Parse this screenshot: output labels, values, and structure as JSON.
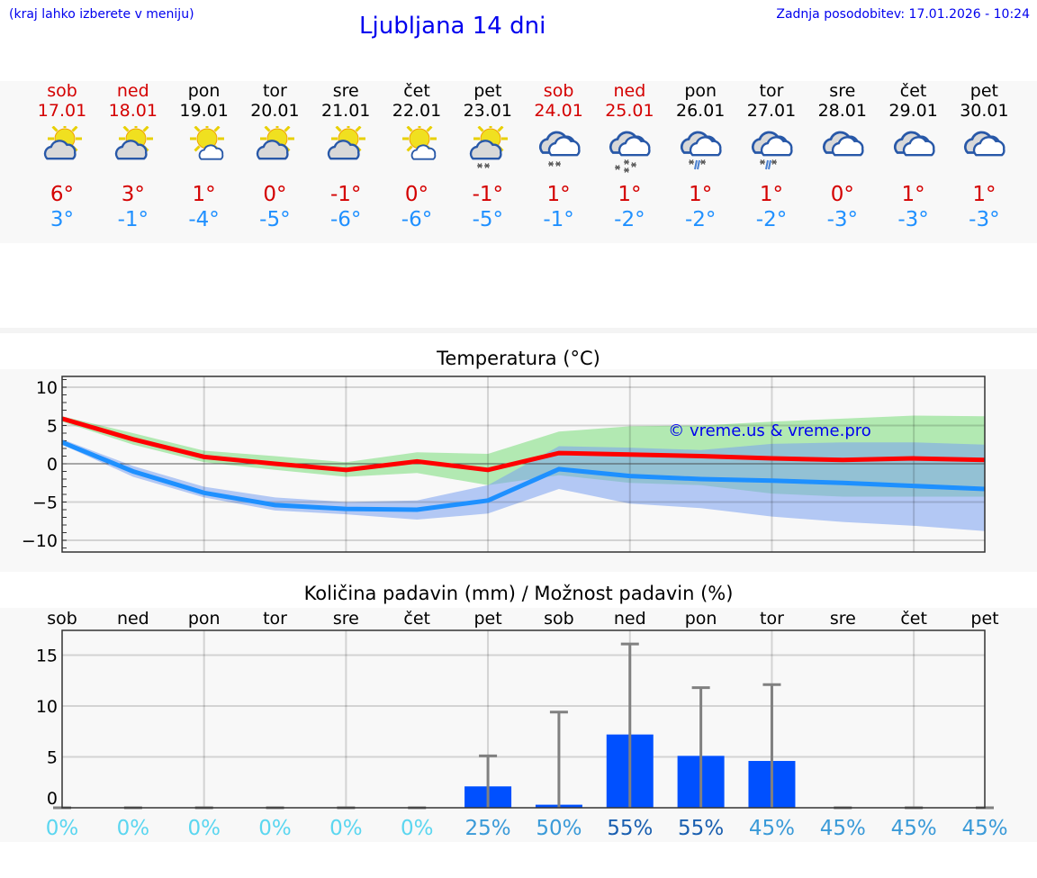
{
  "header": {
    "hint": "(kraj lahko izberete v meniju)",
    "title": "Ljubljana 14 dni",
    "updated": "Zadnja posodobitev: 17.01.2026 - 10:24"
  },
  "days": [
    {
      "weekday": "sob",
      "date": "17.01",
      "weekend": true,
      "icon": "sun-cloud-icon",
      "max": "6°",
      "min": "3°"
    },
    {
      "weekday": "ned",
      "date": "18.01",
      "weekend": true,
      "icon": "sun-cloud-icon",
      "max": "3°",
      "min": "-1°"
    },
    {
      "weekday": "pon",
      "date": "19.01",
      "weekend": false,
      "icon": "sun-small-cloud-icon",
      "max": "1°",
      "min": "-4°"
    },
    {
      "weekday": "tor",
      "date": "20.01",
      "weekend": false,
      "icon": "sun-cloud-icon",
      "max": "0°",
      "min": "-5°"
    },
    {
      "weekday": "sre",
      "date": "21.01",
      "weekend": false,
      "icon": "sun-cloud-icon",
      "max": "-1°",
      "min": "-6°"
    },
    {
      "weekday": "čet",
      "date": "22.01",
      "weekend": false,
      "icon": "sun-small-cloud-icon",
      "max": "0°",
      "min": "-6°"
    },
    {
      "weekday": "pet",
      "date": "23.01",
      "weekend": false,
      "icon": "sun-cloud-snow-icon",
      "max": "-1°",
      "min": "-5°"
    },
    {
      "weekday": "sob",
      "date": "24.01",
      "weekend": true,
      "icon": "cloud-snow-icon",
      "max": "1°",
      "min": "-1°"
    },
    {
      "weekday": "ned",
      "date": "25.01",
      "weekend": true,
      "icon": "cloud-heavy-snow-icon",
      "max": "1°",
      "min": "-2°"
    },
    {
      "weekday": "pon",
      "date": "26.01",
      "weekend": false,
      "icon": "cloud-sleet-icon",
      "max": "1°",
      "min": "-2°"
    },
    {
      "weekday": "tor",
      "date": "27.01",
      "weekend": false,
      "icon": "cloud-sleet-icon",
      "max": "1°",
      "min": "-2°"
    },
    {
      "weekday": "sre",
      "date": "28.01",
      "weekend": false,
      "icon": "cloud-icon",
      "max": "0°",
      "min": "-3°"
    },
    {
      "weekday": "čet",
      "date": "29.01",
      "weekend": false,
      "icon": "cloud-icon",
      "max": "1°",
      "min": "-3°"
    },
    {
      "weekday": "pet",
      "date": "30.01",
      "weekend": false,
      "icon": "cloud-icon",
      "max": "1°",
      "min": "-3°"
    }
  ],
  "chart_data": [
    {
      "type": "line",
      "title": "Temperatura (°C)",
      "ylim": [
        -11.5,
        11.5
      ],
      "yticks": [
        "10",
        "5",
        "0",
        "−5",
        "−10"
      ],
      "ytick_values": [
        10,
        5,
        0,
        -5,
        -10
      ],
      "grid": true,
      "watermark": "© vreme.us & vreme.pro",
      "x": [
        "17.01",
        "18.01",
        "19.01",
        "20.01",
        "21.01",
        "22.01",
        "23.01",
        "24.01",
        "25.01",
        "26.01",
        "27.01",
        "28.01",
        "29.01",
        "30.01"
      ],
      "series": [
        {
          "role": "max",
          "color": "#ff0000",
          "values": [
            5.9,
            3.2,
            0.9,
            0,
            -0.8,
            0.3,
            -0.8,
            1.4,
            1.2,
            1.0,
            0.7,
            0.5,
            0.7,
            0.5
          ],
          "band_high": [
            6.2,
            4,
            1.7,
            1,
            0.2,
            1.5,
            1.3,
            4.2,
            4.9,
            5.0,
            5.5,
            5.9,
            6.3,
            6.2
          ],
          "band_low": [
            5.5,
            2.5,
            0.2,
            -0.8,
            -1.7,
            -1.2,
            -2.8,
            -1.5,
            -2.5,
            -2.8,
            -3.9,
            -4.3,
            -4.3,
            -4.3
          ],
          "band_color": "#aee8ae"
        },
        {
          "role": "min",
          "color": "#1e90ff",
          "values": [
            2.8,
            -1,
            -3.8,
            -5.4,
            -5.9,
            -6.0,
            -4.8,
            -0.7,
            -1.6,
            -2.0,
            -2.2,
            -2.5,
            -2.9,
            -3.3
          ],
          "band_high": [
            3.2,
            -0.3,
            -3,
            -4.4,
            -5,
            -4.8,
            -2.8,
            2.3,
            2.1,
            1.8,
            2.6,
            2.8,
            2.8,
            2.5
          ],
          "band_low": [
            2.5,
            -1.7,
            -4.4,
            -6.1,
            -6.6,
            -7.3,
            -6.5,
            -3.3,
            -5.2,
            -5.8,
            -6.9,
            -7.6,
            -8.1,
            -8.8
          ],
          "band_color": "#7aa0f0"
        }
      ]
    },
    {
      "type": "bar",
      "title": "Količina padavin (mm) / Možnost padavin (%)",
      "ylim": [
        0,
        17.5
      ],
      "yticks": [
        "15",
        "10",
        "5",
        "0"
      ],
      "ytick_values": [
        15,
        10,
        5,
        0
      ],
      "grid": true,
      "categories": [
        "sob",
        "ned",
        "pon",
        "tor",
        "sre",
        "čet",
        "pet",
        "sob",
        "ned",
        "pon",
        "tor",
        "sre",
        "čet",
        "pet"
      ],
      "values": [
        0,
        0,
        0,
        0,
        0,
        0,
        2.1,
        0.3,
        7.2,
        5.1,
        4.6,
        0,
        0,
        0
      ],
      "error_high": [
        0,
        0,
        0,
        0,
        0,
        0,
        5.1,
        9.4,
        16.1,
        11.8,
        12.1,
        0,
        0,
        0
      ],
      "bar_color": "#0050ff",
      "probability": [
        "0%",
        "0%",
        "0%",
        "0%",
        "0%",
        "0%",
        "25%",
        "50%",
        "55%",
        "55%",
        "45%",
        "45%",
        "45%",
        "45%"
      ],
      "probability_colors": [
        "#5bd6f0",
        "#5bd6f0",
        "#5bd6f0",
        "#5bd6f0",
        "#5bd6f0",
        "#5bd6f0",
        "#3a9ad8",
        "#3a9ad8",
        "#1a5fb0",
        "#1a5fb0",
        "#3a9ad8",
        "#3a9ad8",
        "#3a9ad8",
        "#3a9ad8"
      ]
    }
  ]
}
